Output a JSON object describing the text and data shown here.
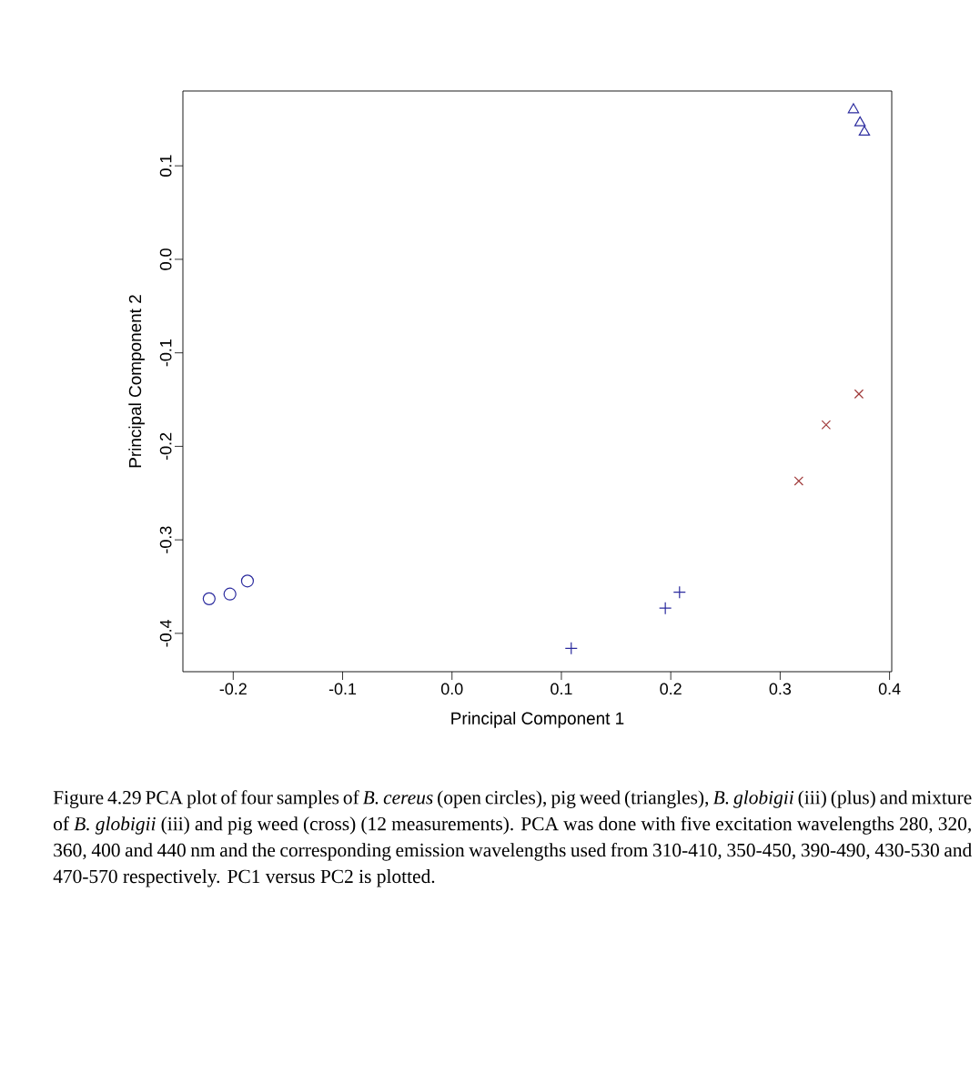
{
  "chart_data": {
    "type": "scatter",
    "xlabel": "Principal Component 1",
    "ylabel": "Principal Component 2",
    "xlim": [
      -0.246,
      0.402
    ],
    "ylim": [
      -0.441,
      0.18
    ],
    "xticks": [
      -0.2,
      -0.1,
      {
        "value": 0,
        "label": "0.0"
      },
      0.1,
      0.2,
      0.3,
      0.4
    ],
    "yticks": [
      -0.4,
      -0.3,
      -0.2,
      -0.1,
      {
        "value": 0,
        "label": "0.0"
      },
      0.1
    ],
    "grid": false,
    "series": [
      {
        "marker": "circle",
        "color": "#2b2b9e",
        "x": [
          -0.222,
          -0.203,
          -0.187
        ],
        "values": [
          -0.363,
          -0.358,
          -0.344
        ]
      },
      {
        "marker": "triangle",
        "color": "#2b2b9e",
        "x": [
          0.367,
          0.373,
          0.377
        ],
        "values": [
          0.16,
          0.146,
          0.136
        ]
      },
      {
        "marker": "plus",
        "color": "#2b2b9e",
        "x": [
          0.109,
          0.195,
          0.208
        ],
        "values": [
          -0.416,
          -0.373,
          -0.356
        ]
      },
      {
        "marker": "cross",
        "color": "#a03a3a",
        "x": [
          0.317,
          0.342,
          0.372
        ],
        "values": [
          -0.237,
          -0.177,
          -0.144
        ]
      }
    ],
    "annotations": [
      "Figure 4.29 PCA plot of four samples of *B. cereus* (open circles), pig weed (triangles), *B. globigii* (iii) (plus) and mixture of *B. globigii* (iii) and pig weed (cross) (12 measurements). PCA was done with five excitation wavelengths 280, 320, 360, 400 and 440 nm and the corresponding emission wavelengths used from 310-410, 350-450, 390-490, 430-530 and 470-570 respectively. PC1 versus PC2 is plotted."
    ]
  }
}
